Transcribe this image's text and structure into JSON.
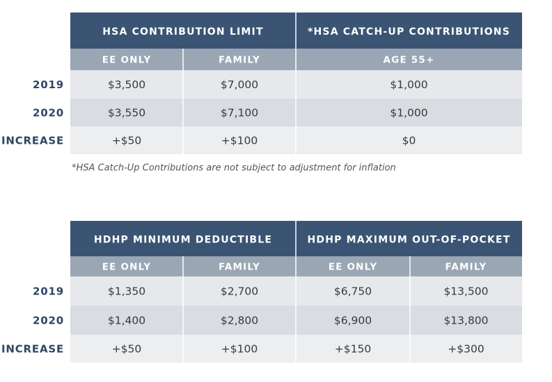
{
  "tables": [
    {
      "header_groups": [
        "HSA CONTRIBUTION LIMIT",
        "*HSA CATCH-UP CONTRIBUTIONS"
      ],
      "subheaders": [
        "EE ONLY",
        "FAMILY",
        "AGE 55+"
      ],
      "rows": [
        {
          "label": "2019",
          "cells": [
            "$3,500",
            "$7,000",
            "$1,000"
          ]
        },
        {
          "label": "2020",
          "cells": [
            "$3,550",
            "$7,100",
            "$1,000"
          ]
        },
        {
          "label": "INCREASE",
          "cells": [
            "+$50",
            "+$100",
            "$0"
          ]
        }
      ],
      "footnote": "*HSA Catch-Up Contributions are not subject to adjustment for inflation"
    },
    {
      "header_groups": [
        "HDHP MINIMUM DEDUCTIBLE",
        "HDHP MAXIMUM OUT-OF-POCKET"
      ],
      "subheaders": [
        "EE ONLY",
        "FAMILY",
        "EE ONLY",
        "FAMILY"
      ],
      "rows": [
        {
          "label": "2019",
          "cells": [
            "$1,350",
            "$2,700",
            "$6,750",
            "$13,500"
          ]
        },
        {
          "label": "2020",
          "cells": [
            "$1,400",
            "$2,800",
            "$6,900",
            "$13,800"
          ]
        },
        {
          "label": "INCREASE",
          "cells": [
            "+$50",
            "+$100",
            "+$150",
            "+$300"
          ]
        }
      ]
    }
  ]
}
